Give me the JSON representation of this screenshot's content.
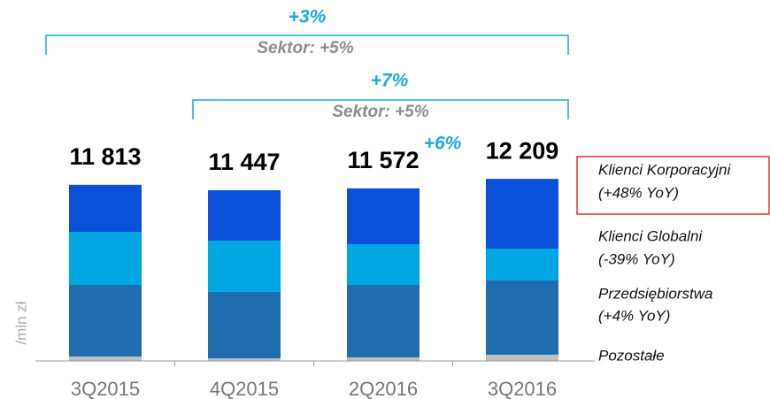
{
  "chart_data": {
    "type": "stacked_bar",
    "categories": [
      "3Q2015",
      "4Q2015",
      "2Q2016",
      "3Q2016"
    ],
    "series": [
      {
        "name": "Pozostałe",
        "color": "#bfbfbf",
        "values": [
          300,
          180,
          240,
          420
        ]
      },
      {
        "name": "Przedsiębiorstwa",
        "note": "(+4% YoY)",
        "color": "#1f6cae",
        "values": [
          4800,
          4450,
          4860,
          4980
        ]
      },
      {
        "name": "Klienci Globalni",
        "note": "(-39% YoY)",
        "color": "#00a6e2",
        "values": [
          3560,
          3440,
          2730,
          2135
        ]
      },
      {
        "name": "Klienci Korporacyjni",
        "note": "(+48% YoY)",
        "color": "#0a50d8",
        "values": [
          3153,
          3377,
          3742,
          4674
        ]
      }
    ],
    "totals": [
      11813,
      11447,
      11572,
      12209
    ],
    "total_labels": [
      "11 813",
      "11 447",
      "11 572",
      "12 209"
    ],
    "ylim": [
      0,
      14000
    ],
    "y_label": "/mln zł",
    "annotations": [
      {
        "text": "+3%",
        "sector": "Sektor: +5%"
      },
      {
        "text": "+7%",
        "sector": "Sektor: +5%"
      },
      {
        "text": "+6%"
      }
    ]
  }
}
